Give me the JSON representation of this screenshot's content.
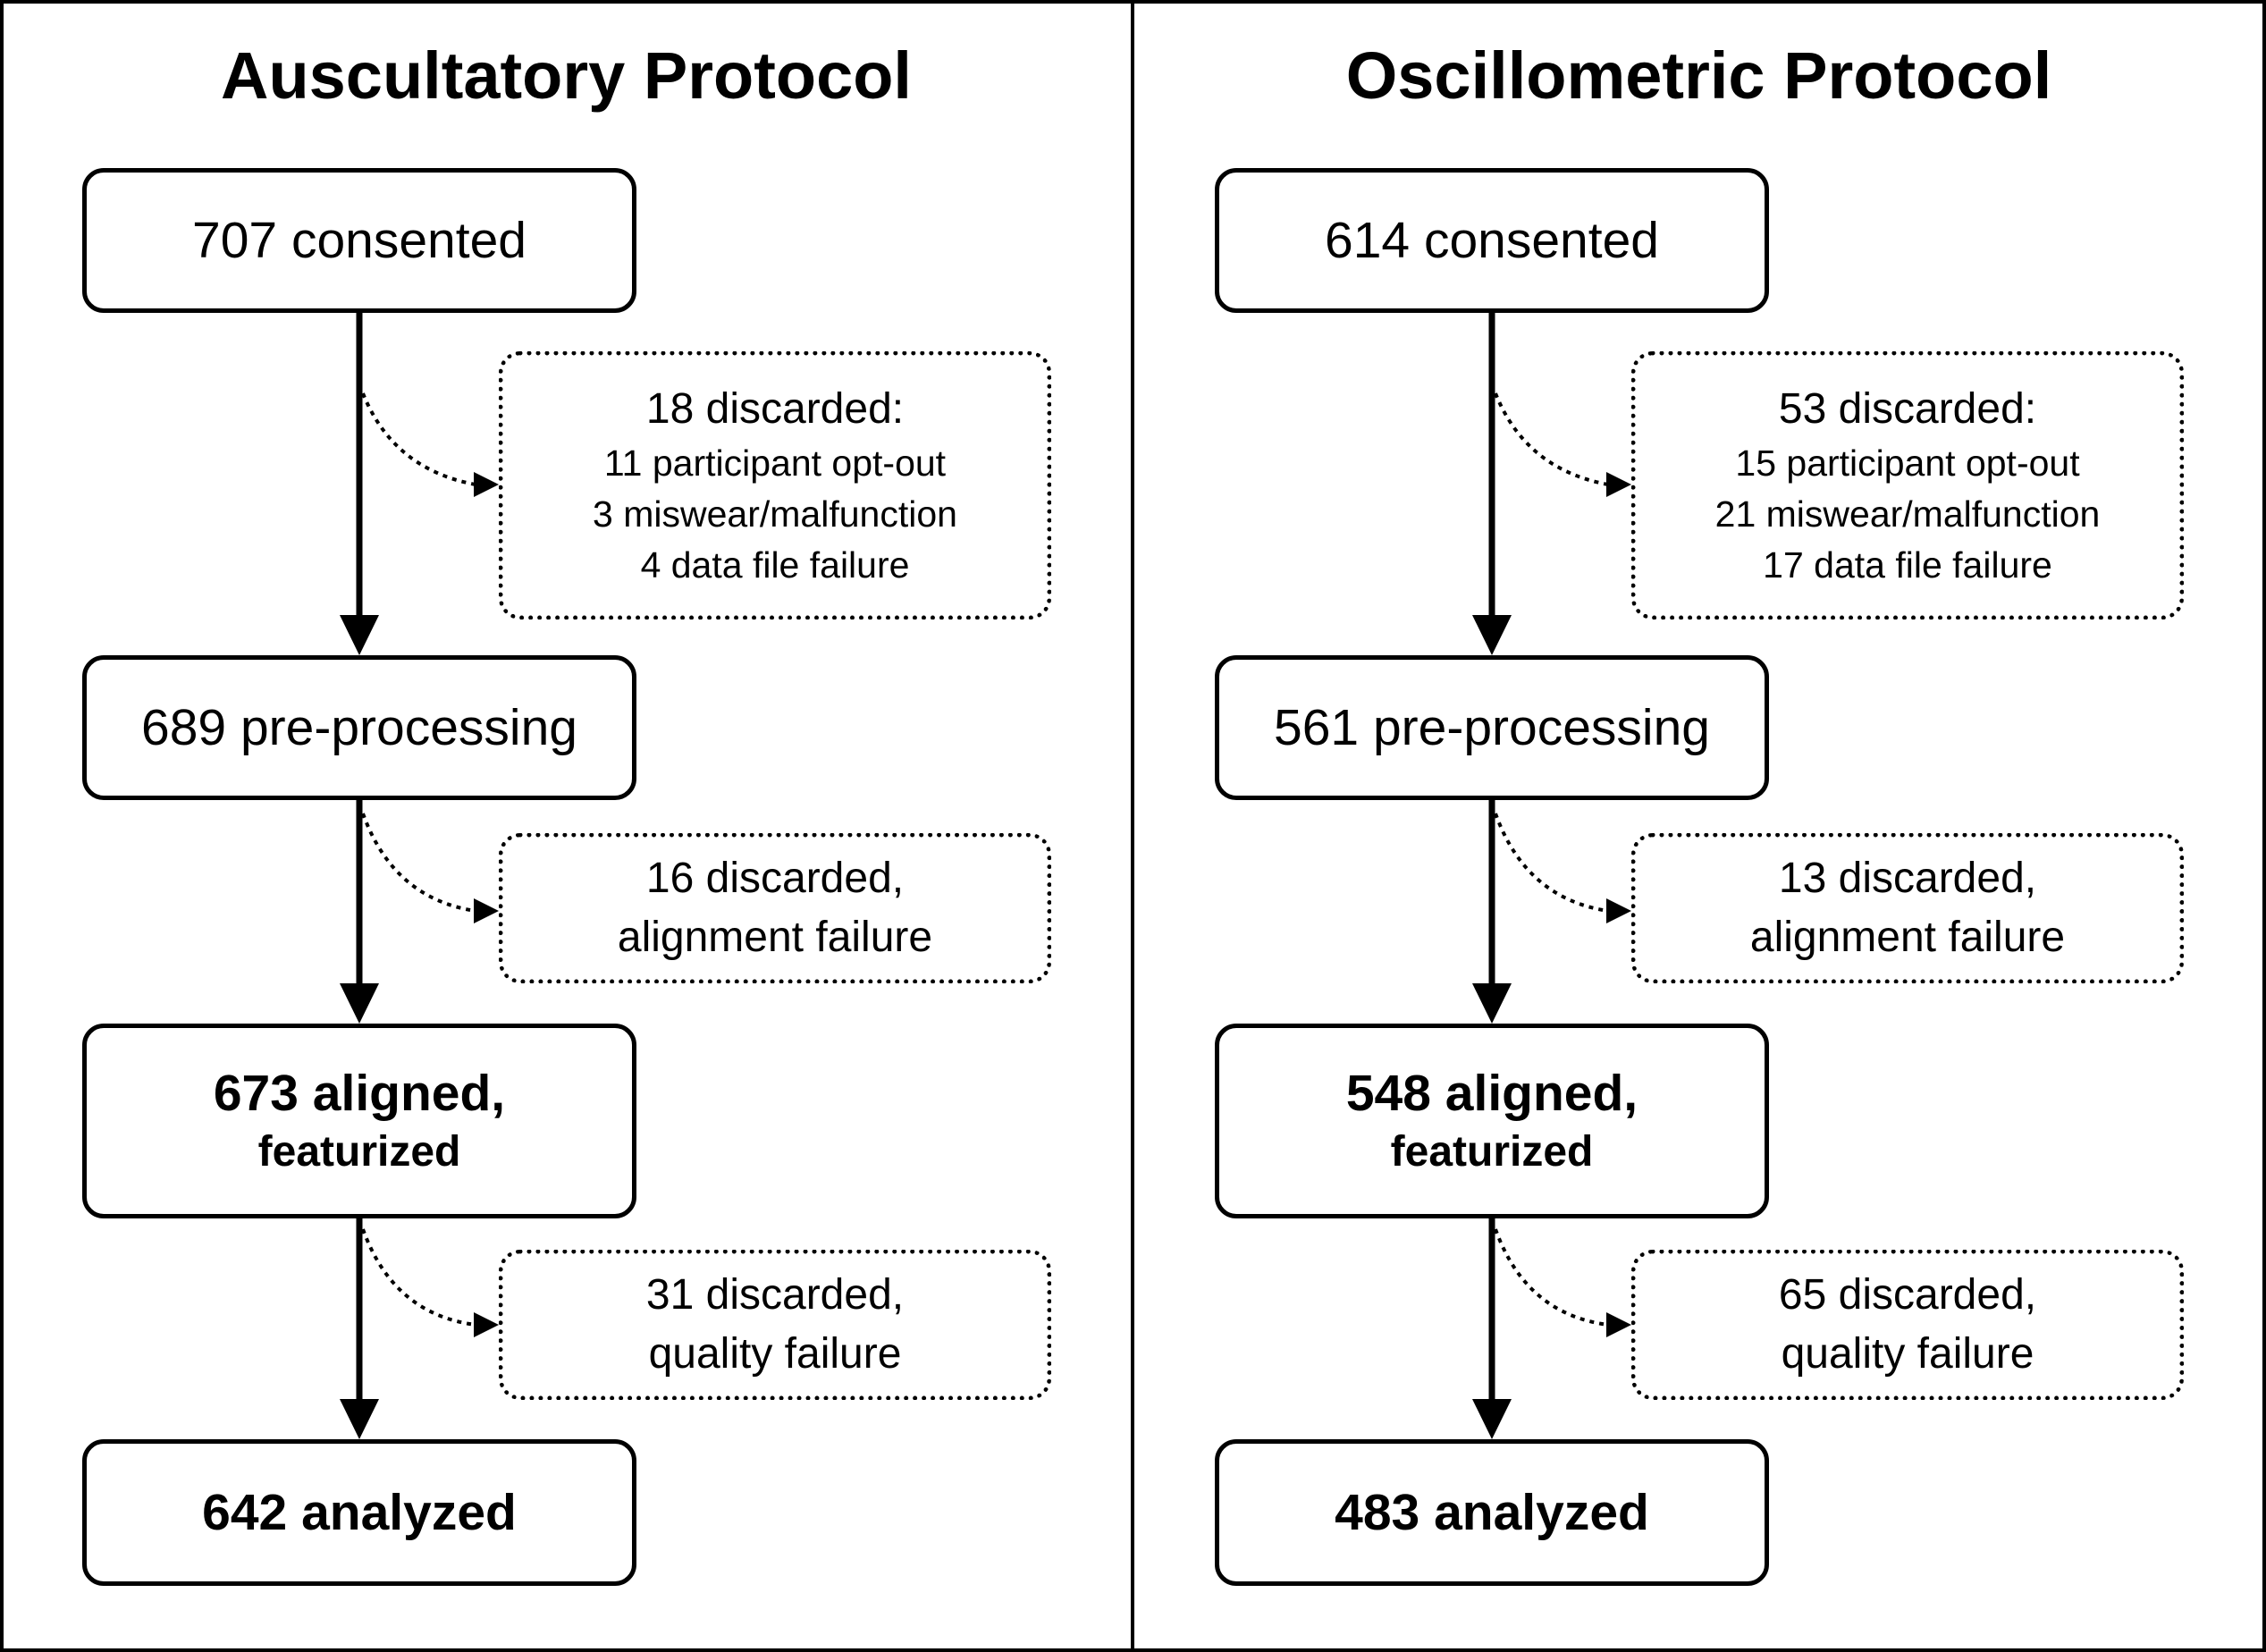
{
  "panels": [
    {
      "title": "Auscultatory Protocol",
      "consented": "707 consented",
      "discard1": {
        "heading": "18 discarded:",
        "lines": [
          "11 participant opt-out",
          "3 miswear/malfunction",
          "4 data file failure"
        ]
      },
      "preprocessing": "689 pre-processing",
      "discard2": {
        "line1": "16 discarded,",
        "line2": "alignment failure"
      },
      "aligned": {
        "line1": "673 aligned,",
        "line2": "featurized"
      },
      "discard3": {
        "line1": "31 discarded,",
        "line2": "quality failure"
      },
      "analyzed": "642 analyzed"
    },
    {
      "title": "Oscillometric Protocol",
      "consented": "614 consented",
      "discard1": {
        "heading": "53 discarded:",
        "lines": [
          "15 participant opt-out",
          "21 miswear/malfunction",
          "17 data file failure"
        ]
      },
      "preprocessing": "561 pre-processing",
      "discard2": {
        "line1": "13 discarded,",
        "line2": "alignment failure"
      },
      "aligned": {
        "line1": "548 aligned,",
        "line2": "featurized"
      },
      "discard3": {
        "line1": "65 discarded,",
        "line2": "quality failure"
      },
      "analyzed": "483 analyzed"
    }
  ]
}
